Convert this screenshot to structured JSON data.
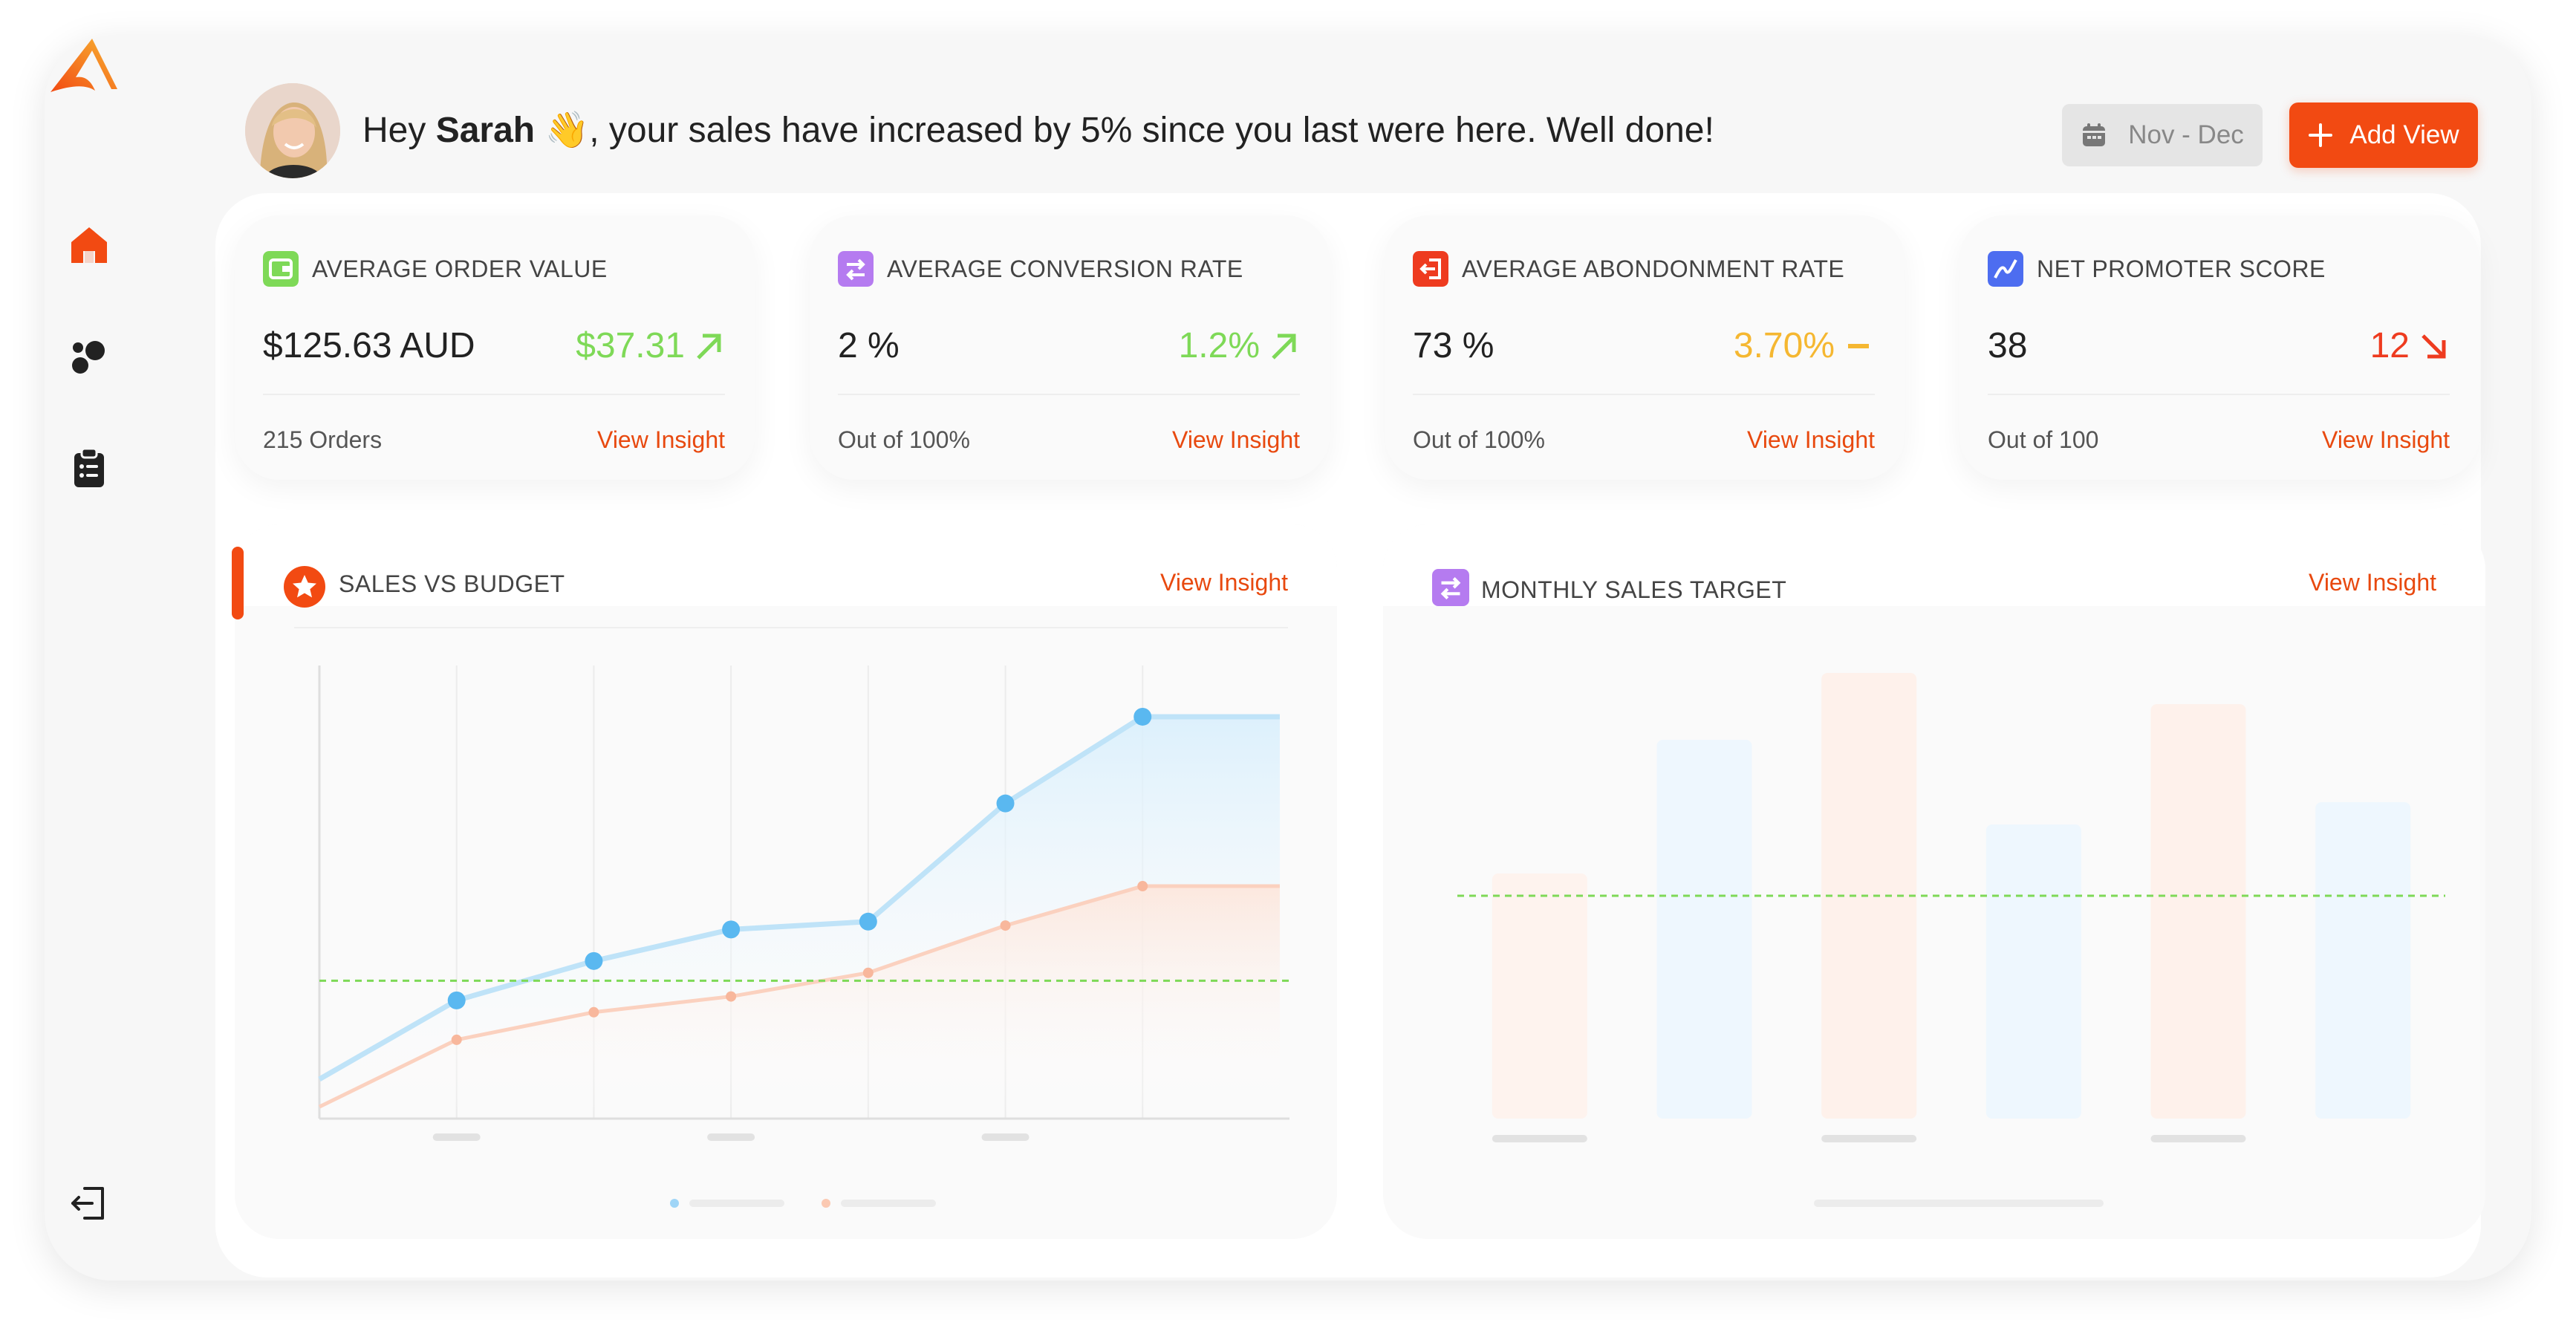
{
  "colors": {
    "accent": "#f24a12",
    "green": "#7ed957",
    "yellow": "#f5b731",
    "red": "#ee3b1f",
    "blue_line": "#bfe3f8",
    "blue_point": "#5ab8f0",
    "peach_line": "#fbd1bf",
    "target_line": "#7ed957"
  },
  "sidebar": {
    "logo_icon": "logo-chevron-icon",
    "items": [
      {
        "icon": "home-icon"
      },
      {
        "icon": "dots-icon"
      },
      {
        "icon": "clipboard-icon"
      }
    ],
    "logout_icon": "logout-icon"
  },
  "header": {
    "greeting_prefix": "Hey ",
    "user_name": "Sarah",
    "wave": "👋",
    "greeting_middle": ", your sales have increased ",
    "greeting_suffix": "by 5% since you last were here. Well done!",
    "date_range": "Nov - Dec",
    "add_view_label": "Add View"
  },
  "kpis": [
    {
      "title": "AVERAGE ORDER VALUE",
      "value": "$125.63 AUD",
      "delta": "$37.31",
      "trend": "up",
      "sub": "215 Orders",
      "link": "View Insight",
      "icon_color": "#7ed957"
    },
    {
      "title": "AVERAGE CONVERSION RATE",
      "value": "2 %",
      "delta": "1.2%",
      "trend": "up",
      "sub": "Out of 100%",
      "link": "View Insight",
      "icon_color": "#b57bf0"
    },
    {
      "title": "AVERAGE ABONDONMENT RATE",
      "value": "73 %",
      "delta": "3.70%",
      "trend": "flat",
      "sub": "Out of 100%",
      "link": "View Insight",
      "icon_color": "#ee3b1f"
    },
    {
      "title": "NET PROMOTER SCORE",
      "value": "38",
      "delta": "12",
      "trend": "down",
      "sub": "Out of 100",
      "link": "View Insight",
      "icon_color": "#4d6df0"
    }
  ],
  "sales_vs_budget": {
    "title": "SALES VS BUDGET",
    "link": "View Insight"
  },
  "monthly_sales_target": {
    "title": "MONTHLY SALES TARGET",
    "link": "View Insight"
  },
  "chart_data": [
    {
      "type": "line",
      "title": "SALES VS BUDGET",
      "x": [
        0,
        1,
        2,
        3,
        4,
        5,
        6,
        7
      ],
      "series": [
        {
          "values": [
            10,
            30,
            40,
            48,
            50,
            80,
            102,
            102
          ]
        },
        {
          "values": [
            3,
            20,
            27,
            31,
            37,
            49,
            59,
            59
          ]
        }
      ],
      "target": 35,
      "ylim": [
        0,
        115
      ],
      "grid": true
    },
    {
      "type": "bar",
      "title": "MONTHLY SALES TARGET",
      "categories": [
        "",
        "",
        "",
        "",
        "",
        ""
      ],
      "values": [
        55,
        85,
        100,
        66,
        93,
        71
      ],
      "target": 50,
      "ylim": [
        0,
        100
      ]
    }
  ]
}
